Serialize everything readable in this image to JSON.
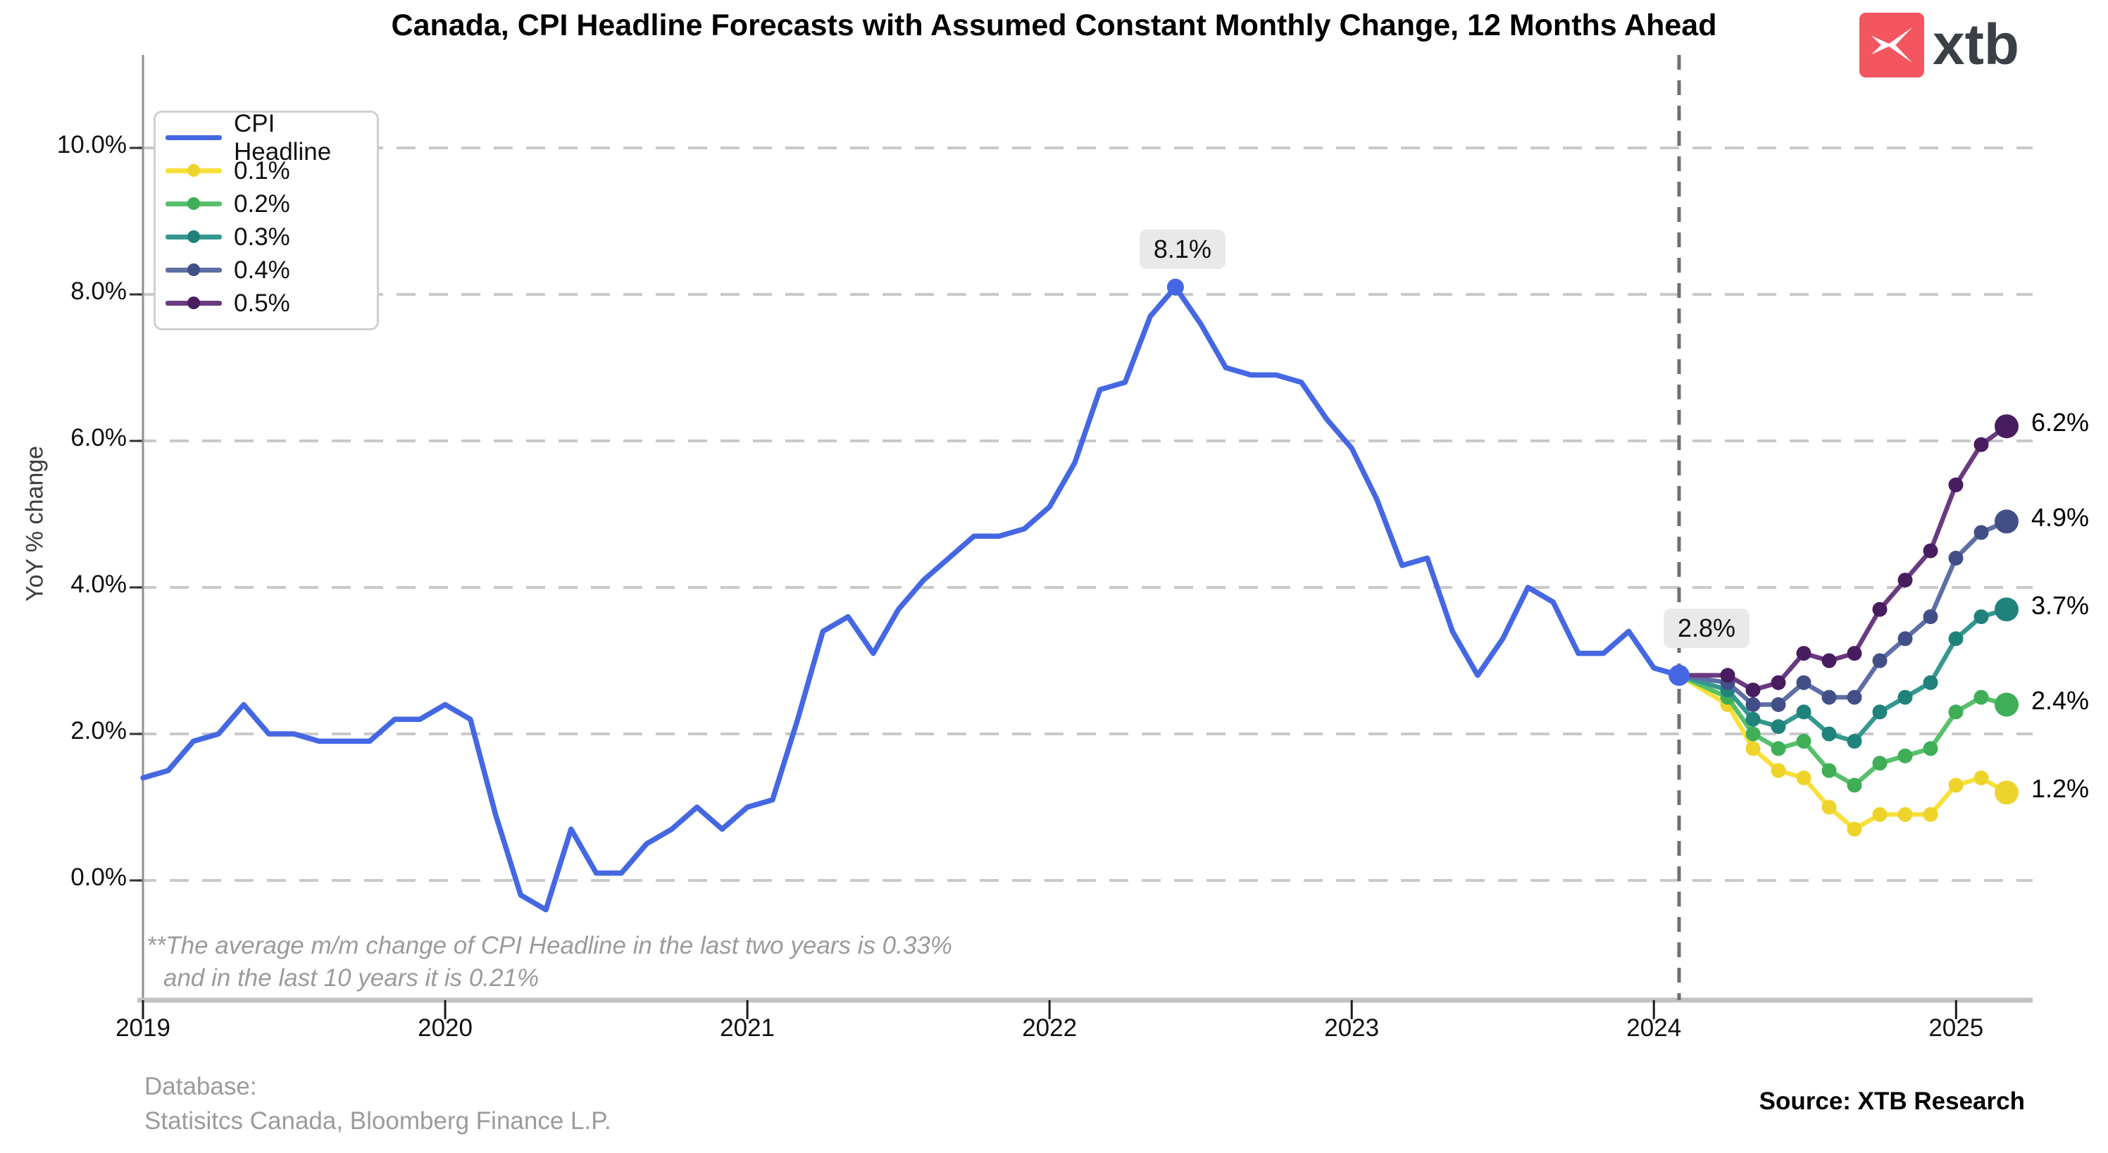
{
  "title": "Canada, CPI Headline Forecasts with Assumed Constant Monthly Change, 12 Months Ahead",
  "logo_text": "xtb",
  "source": "Source: XTB Research",
  "database": {
    "line1": "Database:",
    "line2": "Statisitcs Canada, Bloomberg Finance L.P."
  },
  "footnote": {
    "line1": "**The average m/m change of CPI Headline in the last two years is 0.33%",
    "line2": "and in the last 10 years it is 0.21%"
  },
  "chart_data": {
    "type": "line",
    "title": "Canada, CPI Headline Forecasts with Assumed Constant Monthly Change, 12 Months Ahead",
    "xlabel": "",
    "ylabel": "YoY % change",
    "ylim": [
      -1.6,
      11.2
    ],
    "grid": "dashed-horizontal",
    "legend_position": "top-left",
    "y_ticks": [
      0,
      2,
      4,
      6,
      8,
      10
    ],
    "y_tick_labels": [
      "0.0%",
      "2.0%",
      "4.0%",
      "6.0%",
      "8.0%",
      "10.0%"
    ],
    "x_tick_labels": [
      "2019",
      "2020",
      "2021",
      "2022",
      "2023",
      "2024",
      "2025"
    ],
    "series_actual": {
      "name": "CPI Headline",
      "color": "#4568e2",
      "start_month": "2019-01",
      "end_month": "2024-02",
      "values": [
        1.4,
        1.5,
        1.9,
        2.0,
        2.4,
        2.0,
        2.0,
        1.9,
        1.9,
        1.9,
        2.2,
        2.2,
        2.4,
        2.2,
        0.9,
        -0.2,
        -0.4,
        0.7,
        0.1,
        0.1,
        0.5,
        0.7,
        1.0,
        0.7,
        1.0,
        1.1,
        2.2,
        3.4,
        3.6,
        3.1,
        3.7,
        4.1,
        4.4,
        4.7,
        4.7,
        4.8,
        5.1,
        5.7,
        6.7,
        6.8,
        7.7,
        8.1,
        7.6,
        7.0,
        6.9,
        6.9,
        6.8,
        6.3,
        5.9,
        5.2,
        4.3,
        4.4,
        3.4,
        2.8,
        3.3,
        4.0,
        3.8,
        3.1,
        3.1,
        3.4,
        2.9,
        2.8
      ]
    },
    "forecast_start_month": "2024-02",
    "forecast_start_value": 2.8,
    "forecast_months": [
      "2024-03",
      "2024-04",
      "2024-05",
      "2024-06",
      "2024-07",
      "2024-08",
      "2024-09",
      "2024-10",
      "2024-11",
      "2024-12",
      "2025-01",
      "2025-02"
    ],
    "forecast_series": [
      {
        "name": "0.1%",
        "line_color": "#f8e03a",
        "dot_color": "#eed42a",
        "end_label": "1.2%",
        "values": [
          2.4,
          1.8,
          1.5,
          1.4,
          1.0,
          0.7,
          0.9,
          0.9,
          0.9,
          1.3,
          1.4,
          1.2
        ]
      },
      {
        "name": "0.2%",
        "line_color": "#57c06c",
        "dot_color": "#3fae57",
        "end_label": "2.4%",
        "values": [
          2.5,
          2.0,
          1.8,
          1.9,
          1.5,
          1.3,
          1.6,
          1.7,
          1.8,
          2.3,
          2.5,
          2.4
        ]
      },
      {
        "name": "0.3%",
        "line_color": "#35988f",
        "dot_color": "#1f837c",
        "end_label": "3.7%",
        "values": [
          2.6,
          2.2,
          2.1,
          2.3,
          2.0,
          1.9,
          2.3,
          2.5,
          2.7,
          3.3,
          3.6,
          3.7
        ]
      },
      {
        "name": "0.4%",
        "line_color": "#5d6fa4",
        "dot_color": "#424f87",
        "end_label": "4.9%",
        "values": [
          2.7,
          2.4,
          2.4,
          2.7,
          2.5,
          2.5,
          3.0,
          3.3,
          3.6,
          4.4,
          4.75,
          4.9
        ]
      },
      {
        "name": "0.5%",
        "line_color": "#6a3a80",
        "dot_color": "#471d60",
        "end_label": "6.2%",
        "values": [
          2.8,
          2.6,
          2.7,
          3.1,
          3.0,
          3.1,
          3.7,
          4.1,
          4.5,
          5.4,
          5.95,
          6.2
        ]
      }
    ],
    "annotations": [
      {
        "text": "8.1%",
        "series": "CPI Headline",
        "month": "2022-06",
        "value": 8.1
      },
      {
        "text": "2.8%",
        "series": "CPI Headline",
        "month": "2024-02",
        "value": 2.8
      }
    ],
    "vline_month": "2024-02"
  }
}
